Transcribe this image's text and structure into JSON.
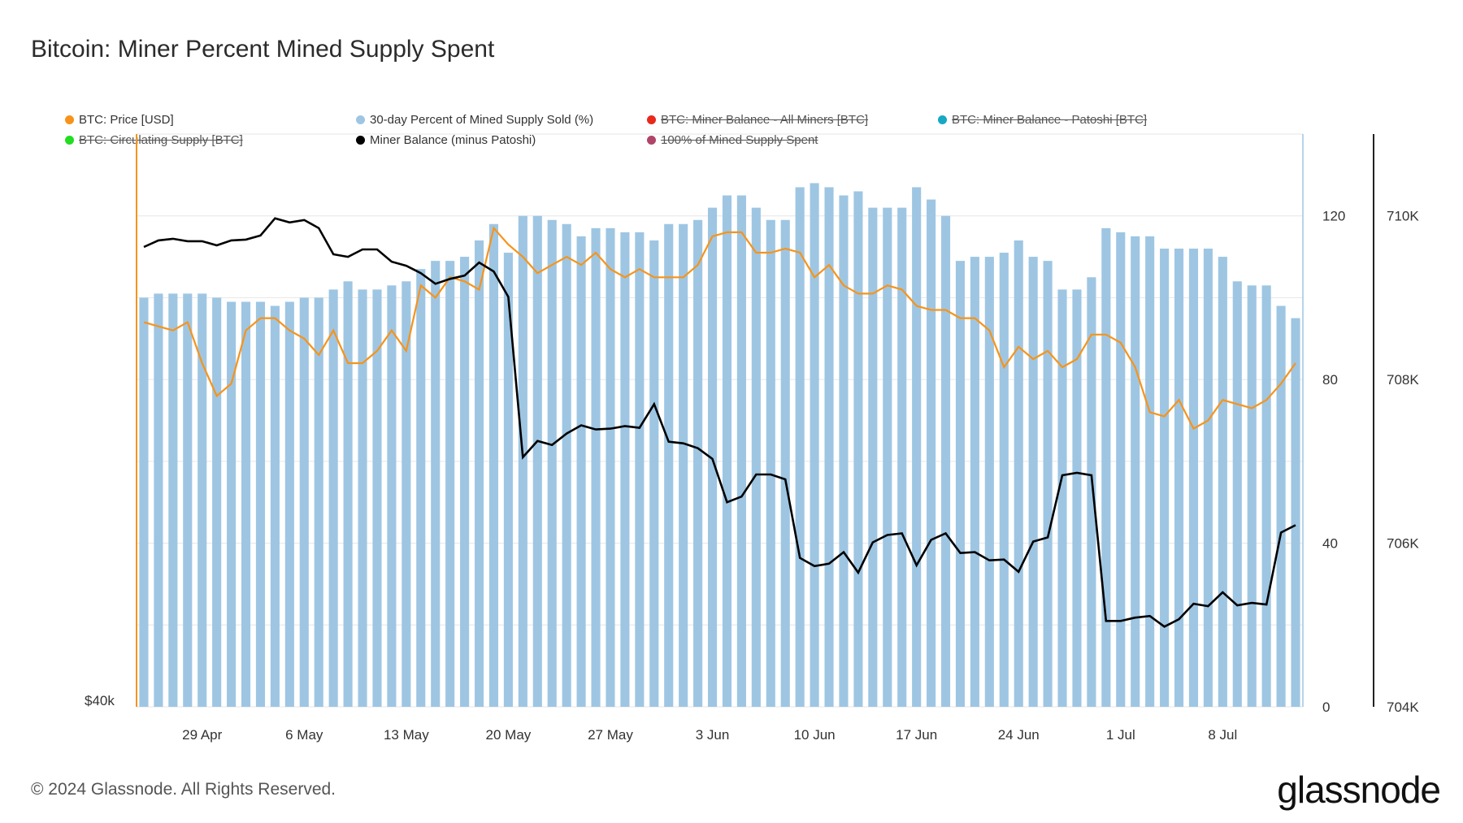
{
  "title": "Bitcoin: Miner Percent Mined Supply Spent",
  "footer": "© 2024 Glassnode. All Rights Reserved.",
  "brand": "glassnode",
  "legend": [
    {
      "label": "BTC: Price [USD]",
      "color": "#f7931a",
      "enabled": true
    },
    {
      "label": "30-day Percent of Mined Supply Sold (%)",
      "color": "#9ec6e3",
      "enabled": true
    },
    {
      "label": "BTC: Miner Balance - All Miners [BTC]",
      "color": "#e8291c",
      "enabled": false
    },
    {
      "label": "BTC: Miner Balance - Patoshi [BTC]",
      "color": "#17a8c4",
      "enabled": false
    },
    {
      "label": "BTC: Circulating Supply [BTC]",
      "color": "#22dd22",
      "enabled": false
    },
    {
      "label": "Miner Balance (minus Patoshi)",
      "color": "#000000",
      "enabled": true
    },
    {
      "label": "100% of Mined Supply Spent",
      "color": "#b0446a",
      "enabled": false
    }
  ],
  "chart_data": {
    "type": "bar",
    "x_tick_labels": [
      "29 Apr",
      "6 May",
      "13 May",
      "20 May",
      "27 May",
      "3 Jun",
      "10 Jun",
      "17 Jun",
      "24 Jun",
      "1 Jul",
      "8 Jul"
    ],
    "x_tick_day_index": [
      4,
      11,
      18,
      25,
      32,
      39,
      46,
      53,
      60,
      67,
      74
    ],
    "day_count": 80,
    "left_axis_label": "$40k",
    "pct_axis": {
      "ticks": [
        0,
        40,
        80,
        120
      ],
      "tick_labels": [
        "0",
        "40",
        "80",
        "120"
      ],
      "range": [
        0,
        140
      ]
    },
    "balance_axis": {
      "ticks": [
        704000,
        706000,
        708000,
        710000
      ],
      "tick_labels": [
        "704K",
        "706K",
        "708K",
        "710K"
      ],
      "range": [
        704000,
        711000
      ]
    },
    "series": [
      {
        "name": "30-day Percent of Mined Supply Sold (%)",
        "kind": "bar",
        "axis": "pct",
        "values": [
          100,
          101,
          101,
          101,
          101,
          100,
          99,
          99,
          99,
          98,
          99,
          100,
          100,
          102,
          104,
          102,
          102,
          103,
          104,
          107,
          109,
          109,
          110,
          114,
          118,
          111,
          120,
          120,
          119,
          118,
          115,
          117,
          117,
          116,
          116,
          114,
          118,
          118,
          119,
          122,
          125,
          125,
          122,
          119,
          119,
          127,
          128,
          127,
          125,
          126,
          122,
          122,
          122,
          127,
          124,
          120,
          109,
          110,
          110,
          111,
          114,
          110,
          109,
          102,
          102,
          105,
          117,
          116,
          115,
          115,
          112,
          112,
          112,
          112,
          110,
          104,
          103,
          103,
          98,
          95
        ]
      },
      {
        "name": "Miner Balance (minus Patoshi)",
        "kind": "line",
        "axis": "balance",
        "color": "#000000",
        "values": [
          709620,
          709700,
          709720,
          709690,
          709690,
          709640,
          709700,
          709710,
          709760,
          709970,
          709920,
          709950,
          709850,
          709530,
          709500,
          709590,
          709590,
          709440,
          709390,
          709300,
          709170,
          709230,
          709270,
          709430,
          709320,
          709010,
          707050,
          707250,
          707200,
          707340,
          707440,
          707390,
          707400,
          707430,
          707410,
          707700,
          707240,
          707220,
          707160,
          707030,
          706500,
          706570,
          706840,
          706840,
          706780,
          705820,
          705720,
          705750,
          705890,
          705640,
          706010,
          706100,
          706120,
          705730,
          706040,
          706120,
          705880,
          705890,
          705790,
          705800,
          705650,
          706020,
          706070,
          706830,
          706860,
          706830,
          705050,
          705050,
          705090,
          705110,
          704980,
          705070,
          705260,
          705230,
          705400,
          705240,
          705270,
          705250,
          706130,
          706220
        ]
      },
      {
        "name": "BTC: Price [USD]",
        "kind": "line",
        "axis": "pct_scaled",
        "color": "#f7931a",
        "values": [
          94,
          93,
          92,
          94,
          84,
          76,
          79,
          92,
          95,
          95,
          92,
          90,
          86,
          92,
          84,
          84,
          87,
          92,
          87,
          103,
          100,
          105,
          104,
          102,
          117,
          113,
          110,
          106,
          108,
          110,
          108,
          111,
          107,
          105,
          107,
          105,
          105,
          105,
          108,
          115,
          116,
          116,
          111,
          111,
          112,
          111,
          105,
          108,
          103,
          101,
          101,
          103,
          102,
          98,
          97,
          97,
          95,
          95,
          92,
          83,
          88,
          85,
          87,
          83,
          85,
          91,
          91,
          89,
          83,
          72,
          71,
          75,
          68,
          70,
          75,
          74,
          73,
          75,
          79,
          84
        ]
      }
    ]
  }
}
